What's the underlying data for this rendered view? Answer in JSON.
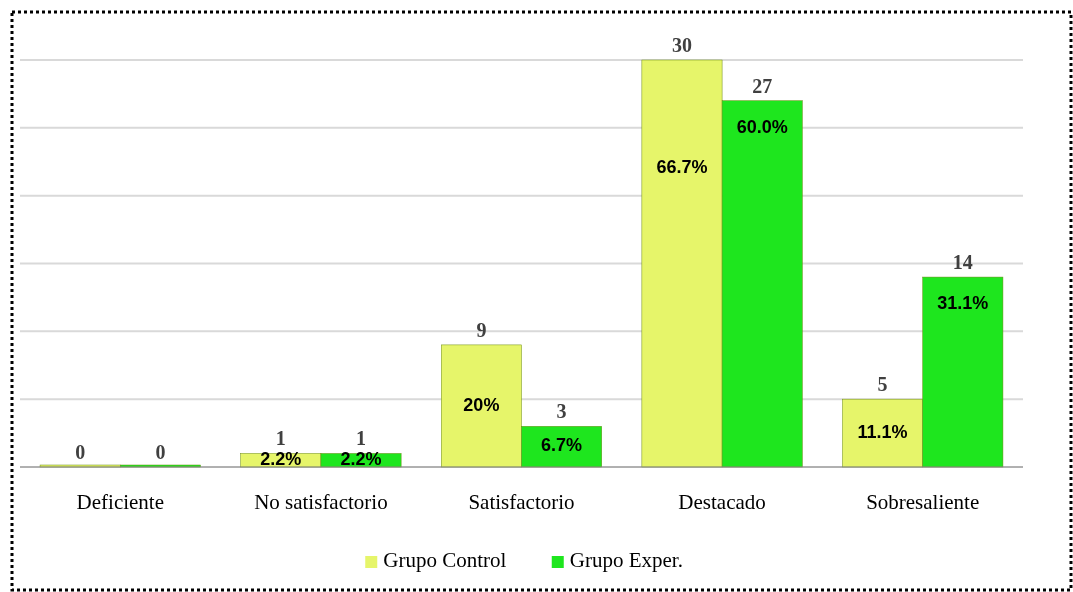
{
  "chart_data": {
    "type": "bar",
    "categories": [
      "Deficiente",
      "No satisfactorio",
      "Satisfactorio",
      "Destacado",
      "Sobresaliente"
    ],
    "series": [
      {
        "name": "Grupo Control",
        "color": "#e6f56a",
        "values": [
          0,
          1,
          9,
          30,
          5
        ]
      },
      {
        "name": "Grupo Exper.",
        "color": "#1ee61e",
        "values": [
          0,
          1,
          3,
          27,
          14
        ]
      }
    ],
    "ylim": [
      0,
      30
    ],
    "yticks": [
      {
        "value": 0,
        "label": null
      },
      {
        "value": 5,
        "label": null
      },
      {
        "value": 10,
        "label": null
      },
      {
        "value": 15,
        "label": null
      },
      {
        "value": 20,
        "label": null
      },
      {
        "value": 25,
        "label": null
      },
      {
        "value": 30,
        "label": null
      }
    ],
    "tick_labels": "x",
    "grid": "y",
    "data_labels": true,
    "legend": "bottom",
    "annotations": [
      {
        "text": "2.2%",
        "x": "No satisfactorio",
        "y": 0.5
      },
      {
        "text": "2.2%",
        "x": "No satisfactorio",
        "y": 0.5
      },
      {
        "text": "20%",
        "x": "Satisfactorio",
        "y": 4.5
      },
      {
        "text": "6.7%",
        "x": "Satisfactorio",
        "y": 1.5
      },
      {
        "text": "66.7%",
        "x": "Destacado",
        "y": 22
      },
      {
        "text": "60.0%",
        "x": "Destacado",
        "y": 25
      },
      {
        "text": "11.1%",
        "x": "Sobresaliente",
        "y": 2.5
      },
      {
        "text": "31.1%",
        "x": "Sobresaliente",
        "y": 12
      }
    ]
  }
}
